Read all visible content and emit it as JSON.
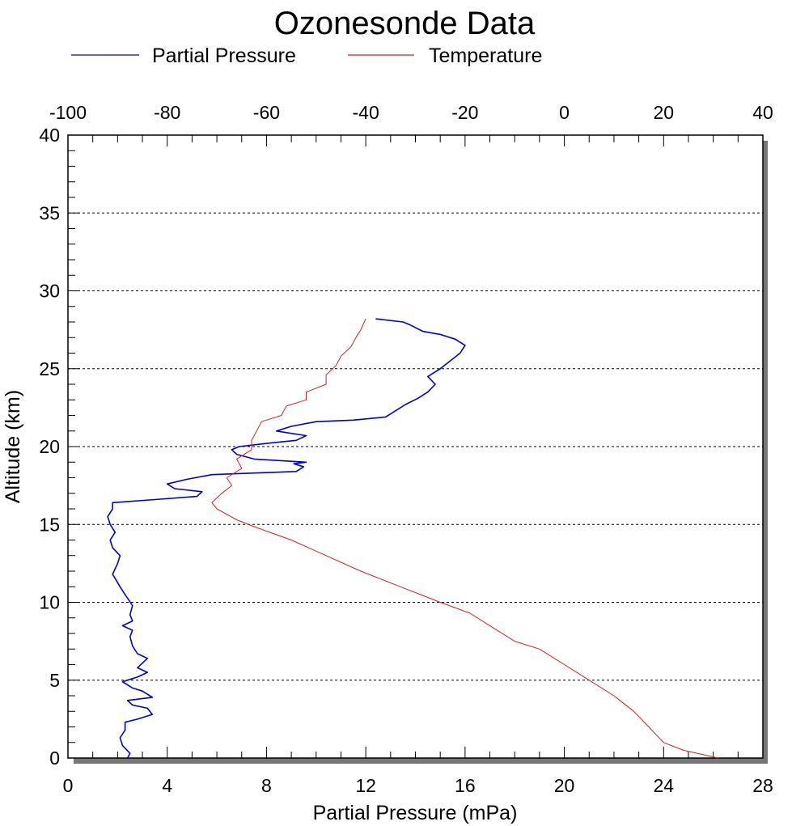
{
  "chart_data": {
    "type": "line",
    "title": "Ozonesonde Data",
    "legend": {
      "placement": "top",
      "entries": [
        {
          "name": "Partial Pressure",
          "color": "#0000cc"
        },
        {
          "name": "Temperature",
          "color": "#cc2222"
        }
      ]
    },
    "x_bottom": {
      "label": "Partial Pressure (mPa)",
      "range": [
        0,
        28
      ],
      "ticks": [
        "0",
        "4",
        "8",
        "12",
        "16",
        "20",
        "24",
        "28"
      ],
      "tick_values": [
        0,
        4,
        8,
        12,
        16,
        20,
        24,
        28
      ]
    },
    "x_top": {
      "label": "",
      "range": [
        -100,
        40
      ],
      "ticks": [
        "-100",
        "-80",
        "-60",
        "-40",
        "-20",
        "0",
        "20",
        "40"
      ],
      "tick_values": [
        -100,
        -80,
        -60,
        -40,
        -20,
        0,
        20,
        40
      ]
    },
    "y": {
      "label": "Altitude (km)",
      "range": [
        0,
        40
      ],
      "ticks": [
        "0",
        "5",
        "10",
        "15",
        "20",
        "25",
        "30",
        "35",
        "40"
      ],
      "tick_values": [
        0,
        5,
        10,
        15,
        20,
        25,
        30,
        35,
        40
      ]
    },
    "grid": {
      "horizontal": true,
      "style": "dotted"
    },
    "series": [
      {
        "name": "Partial Pressure",
        "color": "#0000cc",
        "x_axis": "bottom",
        "points": [
          [
            2.4,
            0.0
          ],
          [
            2.5,
            0.3
          ],
          [
            2.2,
            0.8
          ],
          [
            2.1,
            1.3
          ],
          [
            2.3,
            1.8
          ],
          [
            2.3,
            2.3
          ],
          [
            2.8,
            2.5
          ],
          [
            3.4,
            2.8
          ],
          [
            3.2,
            3.2
          ],
          [
            2.6,
            3.4
          ],
          [
            2.4,
            3.7
          ],
          [
            3.4,
            3.9
          ],
          [
            3.0,
            4.3
          ],
          [
            2.6,
            4.5
          ],
          [
            2.2,
            4.9
          ],
          [
            2.8,
            5.2
          ],
          [
            3.2,
            5.5
          ],
          [
            2.8,
            5.8
          ],
          [
            3.2,
            6.4
          ],
          [
            2.8,
            6.7
          ],
          [
            2.6,
            7.2
          ],
          [
            2.5,
            7.8
          ],
          [
            2.6,
            8.2
          ],
          [
            2.2,
            8.5
          ],
          [
            2.6,
            8.8
          ],
          [
            2.5,
            9.2
          ],
          [
            2.6,
            9.8
          ],
          [
            2.3,
            10.5
          ],
          [
            2.1,
            11.0
          ],
          [
            1.8,
            11.8
          ],
          [
            2.0,
            12.5
          ],
          [
            2.1,
            13.0
          ],
          [
            1.8,
            13.5
          ],
          [
            1.7,
            14.0
          ],
          [
            1.9,
            14.5
          ],
          [
            1.7,
            15.0
          ],
          [
            1.6,
            15.5
          ],
          [
            1.8,
            16.0
          ],
          [
            1.8,
            16.4
          ],
          [
            3.5,
            16.6
          ],
          [
            5.2,
            16.8
          ],
          [
            5.4,
            17.1
          ],
          [
            4.3,
            17.3
          ],
          [
            4.0,
            17.6
          ],
          [
            4.8,
            17.9
          ],
          [
            5.8,
            18.2
          ],
          [
            7.5,
            18.3
          ],
          [
            9.2,
            18.4
          ],
          [
            9.5,
            18.7
          ],
          [
            9.1,
            18.9
          ],
          [
            9.6,
            19.0
          ],
          [
            7.5,
            19.2
          ],
          [
            6.8,
            19.5
          ],
          [
            6.6,
            19.8
          ],
          [
            6.9,
            20.0
          ],
          [
            8.0,
            20.2
          ],
          [
            9.2,
            20.4
          ],
          [
            9.6,
            20.7
          ],
          [
            8.4,
            21.0
          ],
          [
            9.0,
            21.3
          ],
          [
            10.0,
            21.6
          ],
          [
            11.5,
            21.7
          ],
          [
            12.8,
            21.9
          ],
          [
            13.2,
            22.3
          ],
          [
            13.6,
            22.7
          ],
          [
            14.1,
            23.1
          ],
          [
            14.5,
            23.5
          ],
          [
            14.8,
            24.0
          ],
          [
            14.5,
            24.5
          ],
          [
            15.0,
            25.0
          ],
          [
            15.4,
            25.5
          ],
          [
            15.8,
            26.0
          ],
          [
            16.0,
            26.5
          ],
          [
            15.6,
            26.9
          ],
          [
            15.0,
            27.2
          ],
          [
            14.3,
            27.4
          ],
          [
            13.8,
            27.8
          ],
          [
            13.5,
            28.0
          ],
          [
            12.4,
            28.2
          ]
        ]
      },
      {
        "name": "Temperature",
        "color": "#cc2222",
        "x_axis": "top",
        "points": [
          [
            31.0,
            0.0
          ],
          [
            24.0,
            0.5
          ],
          [
            20.0,
            1.0
          ],
          [
            17.0,
            2.0
          ],
          [
            14.0,
            3.0
          ],
          [
            10.0,
            4.0
          ],
          [
            5.0,
            5.0
          ],
          [
            0.0,
            6.0
          ],
          [
            -5.0,
            7.0
          ],
          [
            -10.0,
            7.5
          ],
          [
            -15.0,
            8.5
          ],
          [
            -19.0,
            9.3
          ],
          [
            -25.0,
            10.0
          ],
          [
            -33.0,
            11.0
          ],
          [
            -41.0,
            12.0
          ],
          [
            -48.0,
            13.0
          ],
          [
            -55.0,
            14.0
          ],
          [
            -62.0,
            14.8
          ],
          [
            -66.0,
            15.3
          ],
          [
            -70.0,
            16.0
          ],
          [
            -71.0,
            16.4
          ],
          [
            -69.0,
            17.0
          ],
          [
            -67.0,
            17.5
          ],
          [
            -68.0,
            18.0
          ],
          [
            -65.0,
            18.6
          ],
          [
            -66.0,
            19.2
          ],
          [
            -63.0,
            19.8
          ],
          [
            -63.0,
            20.4
          ],
          [
            -62.0,
            21.0
          ],
          [
            -61.0,
            21.6
          ],
          [
            -57.0,
            22.0
          ],
          [
            -56.0,
            22.6
          ],
          [
            -52.0,
            23.0
          ],
          [
            -52.0,
            23.5
          ],
          [
            -48.0,
            24.0
          ],
          [
            -48.0,
            24.6
          ],
          [
            -46.0,
            25.2
          ],
          [
            -45.0,
            25.8
          ],
          [
            -43.0,
            26.4
          ],
          [
            -42.0,
            27.0
          ],
          [
            -41.0,
            27.5
          ],
          [
            -40.0,
            28.2
          ]
        ]
      }
    ]
  }
}
